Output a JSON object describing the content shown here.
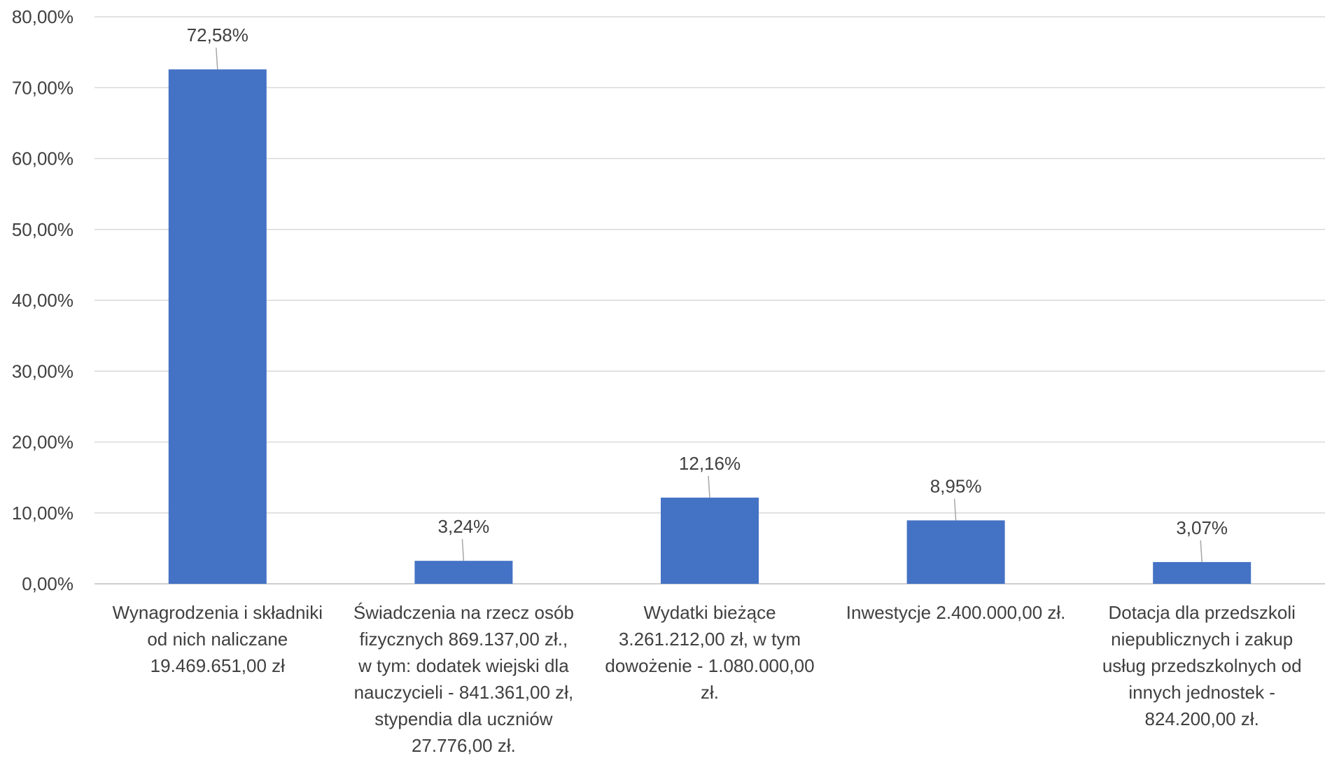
{
  "chart_data": {
    "type": "bar",
    "title": "",
    "xlabel": "",
    "ylabel": "",
    "ylim": [
      0,
      80
    ],
    "y_ticks": [
      "0,00%",
      "10,00%",
      "20,00%",
      "30,00%",
      "40,00%",
      "50,00%",
      "60,00%",
      "70,00%",
      "80,00%"
    ],
    "grid": true,
    "bar_color": "#4472C4",
    "categories": [
      "Wynagrodzenia i składniki od nich naliczane 19.469.651,00 zł",
      "Świadczenia na rzecz osób fizycznych 869.137,00 zł., w tym: dodatek wiejski dla nauczycieli - 841.361,00 zł, stypendia dla uczniów 27.776,00 zł.",
      "Wydatki bieżące 3.261.212,00 zł, w tym dowożenie - 1.080.000,00 zł.",
      "Inwestycje 2.400.000,00 zł.",
      "Dotacja dla przedszkoli niepublicznych i zakup usług przedszkolnych od innych jednostek - 824.200,00 zł."
    ],
    "category_lines": [
      [
        "Wynagrodzenia i składniki",
        "od nich naliczane",
        "19.469.651,00 zł"
      ],
      [
        "Świadczenia na rzecz osób",
        "fizycznych 869.137,00 zł.,",
        "w tym: dodatek wiejski dla",
        "nauczycieli - 841.361,00 zł,",
        "stypendia dla uczniów",
        "27.776,00 zł."
      ],
      [
        "Wydatki bieżące",
        "3.261.212,00 zł, w tym",
        "dowożenie - 1.080.000,00",
        "zł."
      ],
      [
        "Inwestycje 2.400.000,00 zł."
      ],
      [
        "Dotacja dla przedszkoli",
        "niepublicznych i zakup",
        "usług przedszkolnych od",
        "innych jednostek -",
        "824.200,00 zł."
      ]
    ],
    "values": [
      72.58,
      3.24,
      12.16,
      8.95,
      3.07
    ],
    "data_labels": [
      "72,58%",
      "3,24%",
      "12,16%",
      "8,95%",
      "3,07%"
    ]
  }
}
